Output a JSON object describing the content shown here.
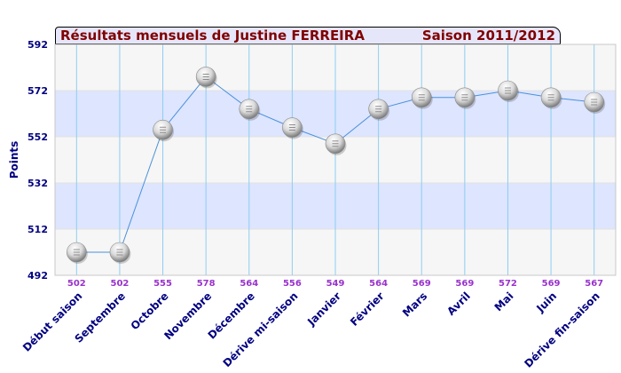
{
  "chart_data": {
    "type": "line",
    "title": "Résultats mensuels de  Justine FERREIRA",
    "subtitle": "Saison 2011/2012",
    "xlabel": "",
    "ylabel": "Points",
    "ylim": [
      492,
      592
    ],
    "yticks": [
      492,
      512,
      532,
      552,
      572,
      592
    ],
    "grid": true,
    "legend": "none",
    "categories": [
      "Début saison",
      "Septembre",
      "Octobre",
      "Novembre",
      "Décembre",
      "Dérive mi-saison",
      "Janvier",
      "Février",
      "Mars",
      "Avril",
      "Mai",
      "Juin",
      "Dérive fin-saison"
    ],
    "series": [
      {
        "values": [
          502,
          502,
          555,
          578,
          564,
          556,
          549,
          564,
          569,
          569,
          572,
          569,
          567
        ]
      }
    ],
    "data_labels": [
      "502",
      "502",
      "555",
      "578",
      "564",
      "556",
      "549",
      "564",
      "569",
      "569",
      "572",
      "569",
      "567"
    ],
    "colors": {
      "title": "#800000",
      "category_label": "#000080",
      "data_label": "#9932cc",
      "band": "#dde5ff",
      "plot_bg": "#f6f6f6",
      "grid_vertical": "#8ecdf0",
      "line": "#4a90d9"
    }
  }
}
